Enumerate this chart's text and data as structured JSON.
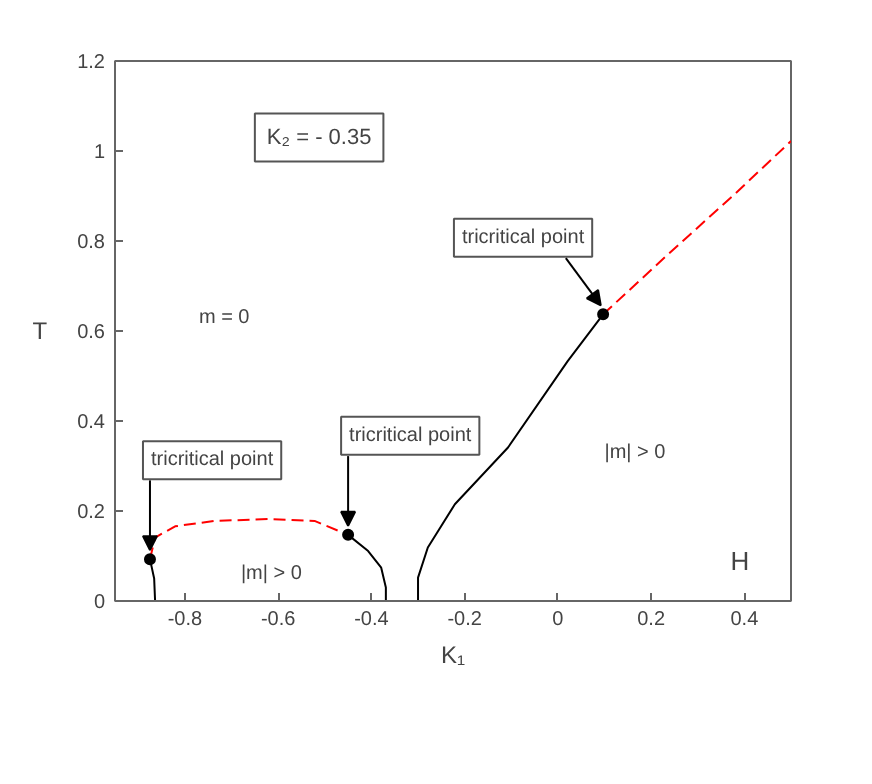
{
  "chart_data": {
    "type": "line",
    "xlabel": "K₁",
    "ylabel": "T",
    "xlim": [
      -0.95,
      0.5
    ],
    "ylim": [
      0,
      1.2
    ],
    "xticks": [
      -0.8,
      -0.6,
      -0.4,
      -0.2,
      0,
      0.2,
      0.4
    ],
    "yticks": [
      0,
      0.2,
      0.4,
      0.6,
      0.8,
      1,
      1.2
    ],
    "grid": false,
    "series": [
      {
        "color": "#000000",
        "line_style": "solid",
        "x": [
          -0.864,
          -0.866,
          -0.875
        ],
        "values": [
          0,
          0.05,
          0.093
        ]
      },
      {
        "color": "#ff0000",
        "line_style": "dashed",
        "x": [
          -0.875,
          -0.864,
          -0.821,
          -0.736,
          -0.622,
          -0.522,
          -0.45
        ],
        "values": [
          0.093,
          0.141,
          0.166,
          0.178,
          0.182,
          0.178,
          0.147
        ]
      },
      {
        "color": "#000000",
        "line_style": "solid",
        "x": [
          -0.45,
          -0.407,
          -0.379,
          -0.369,
          -0.369
        ],
        "values": [
          0.147,
          0.111,
          0.074,
          0.03,
          0
        ]
      },
      {
        "color": "#000000",
        "line_style": "solid",
        "x": [
          -0.3,
          -0.3,
          -0.279,
          -0.221,
          -0.107,
          0.021,
          0.097
        ],
        "values": [
          0,
          0.052,
          0.119,
          0.215,
          0.341,
          0.533,
          0.637
        ]
      },
      {
        "color": "#ff0000",
        "line_style": "dashed",
        "x": [
          0.097,
          0.236,
          0.379,
          0.5
        ],
        "values": [
          0.637,
          0.77,
          0.904,
          1.022
        ]
      },
      {
        "type": "scatter",
        "marker": "circle",
        "color": "#000000",
        "x": [
          -0.875,
          -0.45,
          0.097
        ],
        "values": [
          0.093,
          0.147,
          0.637
        ]
      }
    ],
    "annotations": [
      {
        "text": "tricritical point",
        "x": -0.875,
        "y": 0.093
      },
      {
        "text": "tricritical point",
        "x": -0.45,
        "y": 0.147
      },
      {
        "text": "tricritical point",
        "x": 0.097,
        "y": 0.637
      },
      "K₂ = - 0.35",
      "m = 0",
      "|m| > 0",
      "|m| > 0",
      "H"
    ]
  }
}
